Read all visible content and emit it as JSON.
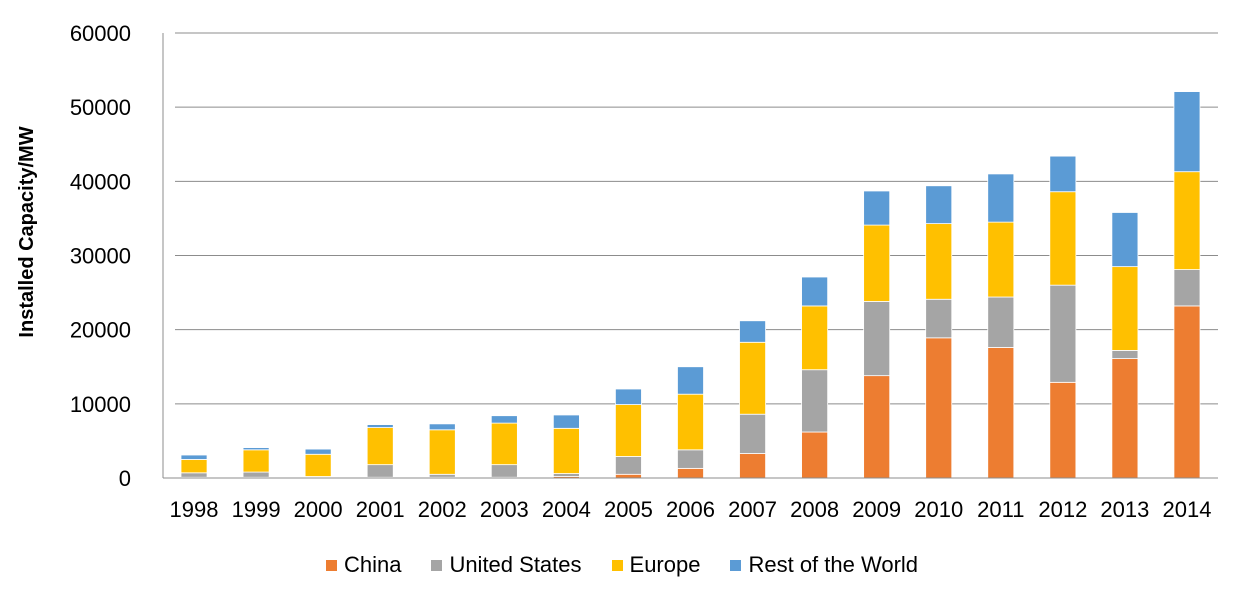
{
  "chart_data": {
    "type": "bar",
    "stacked": true,
    "title": "",
    "xlabel": "",
    "ylabel": "Installed Capacity/MW",
    "ylim": [
      0,
      60000
    ],
    "yticks": [
      0,
      10000,
      20000,
      30000,
      40000,
      50000,
      60000
    ],
    "grid": true,
    "legend_position": "bottom",
    "categories": [
      "1998",
      "1999",
      "2000",
      "2001",
      "2002",
      "2003",
      "2004",
      "2005",
      "2006",
      "2007",
      "2008",
      "2009",
      "2010",
      "2011",
      "2012",
      "2013",
      "2014"
    ],
    "series": [
      {
        "name": "China",
        "color": "#ED7D31",
        "values": [
          100,
          100,
          100,
          100,
          100,
          100,
          200,
          500,
          1300,
          3300,
          6200,
          13800,
          18900,
          17600,
          12900,
          16100,
          23200
        ]
      },
      {
        "name": "United States",
        "color": "#A5A5A5",
        "values": [
          600,
          700,
          100,
          1700,
          400,
          1700,
          400,
          2400,
          2500,
          5300,
          8400,
          10000,
          5200,
          6800,
          13100,
          1100,
          4900
        ]
      },
      {
        "name": "Europe",
        "color": "#FFC000",
        "values": [
          1800,
          3000,
          3000,
          5000,
          6000,
          5600,
          6100,
          7000,
          7500,
          9700,
          8600,
          10300,
          10200,
          10100,
          12600,
          11300,
          13200
        ]
      },
      {
        "name": "Rest of the World",
        "color": "#5B9BD5",
        "values": [
          600,
          300,
          700,
          400,
          800,
          1000,
          1800,
          2100,
          3700,
          2900,
          3900,
          4600,
          5100,
          6500,
          4800,
          7300,
          10800
        ]
      }
    ]
  }
}
